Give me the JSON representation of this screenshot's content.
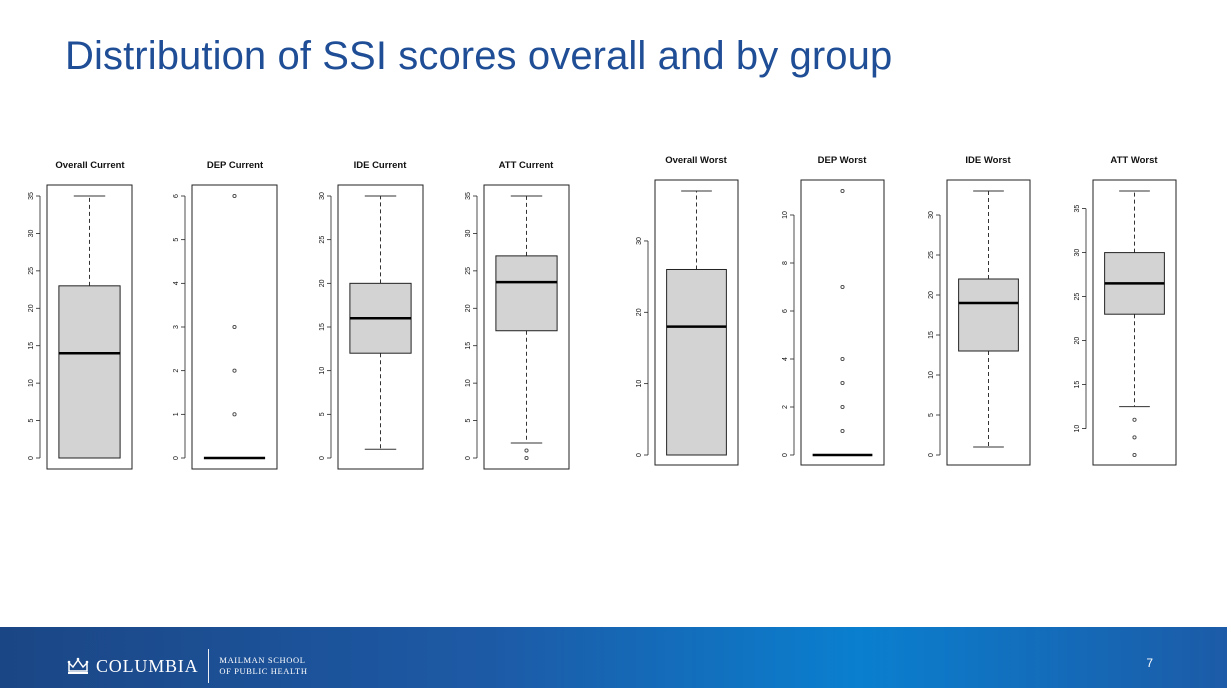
{
  "slide": {
    "title": "Distribution of SSI scores overall and by group",
    "page_number": "7"
  },
  "footer": {
    "brand": "COLUMBIA",
    "school_line1": "MAILMAN SCHOOL",
    "school_line2": "OF PUBLIC HEALTH"
  },
  "colors": {
    "title": "#1f4e96",
    "box_fill": "#d3d3d3",
    "footer_start": "#1b4685",
    "footer_mid": "#0a7fcf"
  },
  "chart_data": [
    {
      "type": "boxplot",
      "title": "Overall Current",
      "ylim": [
        0,
        35
      ],
      "ticks": [
        0,
        5,
        10,
        15,
        20,
        25,
        30,
        35
      ],
      "min": 0,
      "q1": 0,
      "median": 14,
      "q3": 23,
      "max": 35,
      "outliers": []
    },
    {
      "type": "boxplot",
      "title": "DEP Current",
      "ylim": [
        0,
        6
      ],
      "ticks": [
        0,
        1,
        2,
        3,
        4,
        5,
        6
      ],
      "min": 0,
      "q1": 0,
      "median": 0,
      "q3": 0,
      "max": 0,
      "outliers": [
        1,
        2,
        3,
        6
      ]
    },
    {
      "type": "boxplot",
      "title": "IDE Current",
      "ylim": [
        0,
        30
      ],
      "ticks": [
        0,
        5,
        10,
        15,
        20,
        25,
        30
      ],
      "min": 1,
      "q1": 12,
      "median": 16,
      "q3": 20,
      "max": 30,
      "outliers": []
    },
    {
      "type": "boxplot",
      "title": "ATT Current",
      "ylim": [
        0,
        35
      ],
      "ticks": [
        0,
        5,
        10,
        15,
        20,
        25,
        30,
        35
      ],
      "min": 2,
      "q1": 17,
      "median": 23.5,
      "q3": 27,
      "max": 35,
      "outliers": [
        0,
        1
      ]
    },
    {
      "type": "boxplot",
      "title": "Overall Worst",
      "ylim": [
        0,
        37
      ],
      "ticks": [
        0,
        10,
        20,
        30
      ],
      "min": 0,
      "q1": 0,
      "median": 18,
      "q3": 26,
      "max": 37,
      "outliers": []
    },
    {
      "type": "boxplot",
      "title": "DEP Worst",
      "ylim": [
        0,
        11
      ],
      "ticks": [
        0,
        2,
        4,
        6,
        8,
        10
      ],
      "min": 0,
      "q1": 0,
      "median": 0,
      "q3": 0,
      "max": 0,
      "outliers": [
        1,
        2,
        3,
        4,
        7,
        11
      ]
    },
    {
      "type": "boxplot",
      "title": "IDE Worst",
      "ylim": [
        0,
        33
      ],
      "ticks": [
        0,
        5,
        10,
        15,
        20,
        25,
        30
      ],
      "min": 1,
      "q1": 13,
      "median": 19,
      "q3": 22,
      "max": 33,
      "outliers": []
    },
    {
      "type": "boxplot",
      "title": "ATT Worst",
      "ylim": [
        7,
        37
      ],
      "ticks": [
        10,
        15,
        20,
        25,
        30,
        35
      ],
      "min": 12.5,
      "q1": 23,
      "median": 26.5,
      "q3": 30,
      "max": 37,
      "outliers": [
        7,
        9,
        11
      ]
    }
  ]
}
